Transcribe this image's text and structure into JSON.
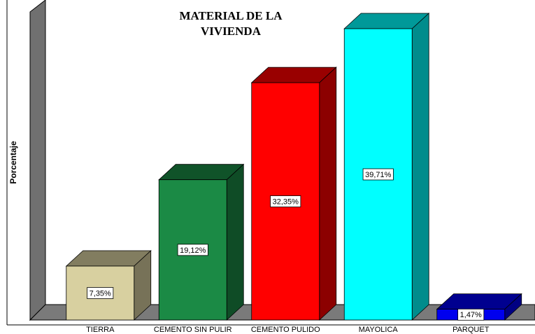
{
  "chart_data": {
    "type": "bar3d",
    "title": "MATERIAL DE LA VIVIENDA",
    "y_label": "Porcentaje",
    "categories": [
      "TIERRA",
      "CEMENTO SIN PULIR",
      "CEMENTO PULIDO",
      "MAYOLICA",
      "PARQUET"
    ],
    "values": [
      7.35,
      19.12,
      32.35,
      39.71,
      1.47
    ],
    "value_labels": [
      "7,35%",
      "19,12%",
      "32,35%",
      "39,71%",
      "1,47%"
    ],
    "colors": [
      "#d8d0a0",
      "#1b8a45",
      "#ff0000",
      "#00ffff",
      "#0000ee"
    ],
    "ylim": [
      0,
      42
    ]
  }
}
